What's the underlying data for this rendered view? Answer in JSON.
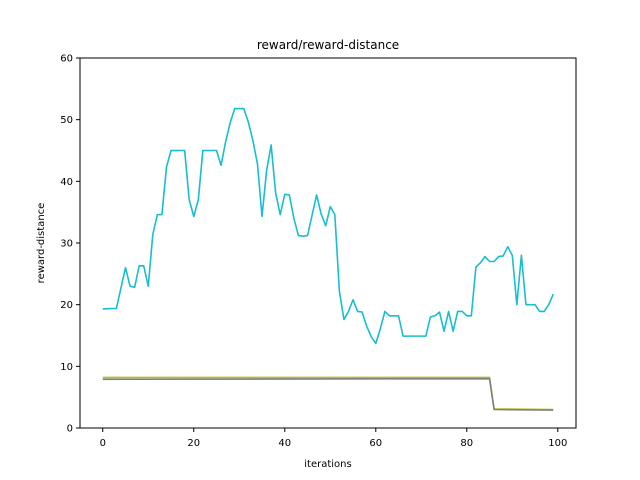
{
  "chart_data": {
    "type": "line",
    "title": "reward/reward-distance",
    "xlabel": "iterations",
    "ylabel": "reward-distance",
    "xlim": [
      -5,
      104
    ],
    "ylim": [
      0,
      60
    ],
    "xticks": [
      0,
      20,
      40,
      60,
      80,
      100
    ],
    "yticks": [
      0,
      10,
      20,
      30,
      40,
      50,
      60
    ],
    "grid": false,
    "series": [
      {
        "color": "#17becf",
        "x": [
          0,
          3,
          5,
          6,
          7,
          8,
          9,
          10,
          11,
          12,
          13,
          14,
          15,
          16,
          17,
          18,
          19,
          20,
          21,
          22,
          23,
          24,
          25,
          26,
          27,
          28,
          29,
          30,
          31,
          32,
          33,
          34,
          35,
          36,
          37,
          38,
          39,
          40,
          41,
          42,
          43,
          44,
          45,
          46,
          47,
          48,
          49,
          50,
          51,
          52,
          53,
          54,
          55,
          56,
          57,
          58,
          59,
          60,
          61,
          62,
          63,
          64,
          65,
          66,
          67,
          68,
          69,
          70,
          71,
          72,
          73,
          74,
          75,
          76,
          77,
          78,
          79,
          80,
          81,
          82,
          83,
          84,
          85,
          86,
          87,
          88,
          89,
          90,
          91,
          92,
          93,
          94,
          95,
          96,
          97,
          98,
          99
        ],
        "y": [
          19.3,
          19.4,
          26.0,
          23.0,
          22.8,
          26.3,
          26.3,
          23.0,
          31.4,
          34.6,
          34.6,
          42.3,
          45.0,
          45.0,
          45.0,
          45.0,
          37.0,
          34.3,
          37.0,
          45.0,
          45.0,
          45.0,
          45.0,
          42.6,
          46.4,
          49.5,
          51.8,
          51.8,
          51.8,
          49.6,
          46.6,
          42.8,
          34.3,
          41.7,
          45.9,
          38.1,
          34.6,
          37.9,
          37.8,
          34.0,
          31.2,
          31.1,
          31.2,
          34.5,
          37.8,
          34.7,
          32.8,
          35.9,
          34.6,
          22.2,
          17.6,
          18.9,
          20.8,
          18.9,
          18.8,
          16.5,
          14.8,
          13.7,
          16.1,
          18.9,
          18.2,
          18.2,
          18.2,
          14.9,
          14.9,
          14.9,
          14.9,
          14.9,
          14.9,
          18.0,
          18.2,
          18.8,
          15.7,
          18.9,
          15.7,
          18.9,
          18.9,
          18.2,
          18.2,
          26.1,
          26.8,
          27.8,
          27.0,
          27.0,
          27.8,
          27.9,
          29.4,
          28.0,
          20.0,
          28.0,
          20.0,
          20.0,
          20.0,
          18.9,
          18.9,
          20.0,
          21.7
        ]
      },
      {
        "color": "#bcbd22",
        "x": [
          0,
          85,
          86,
          99
        ],
        "y": [
          8.2,
          8.2,
          3.1,
          3.0
        ]
      },
      {
        "color": "#7f7f7f",
        "x": [
          0,
          85,
          86,
          99
        ],
        "y": [
          7.9,
          8.0,
          3.0,
          2.9
        ]
      }
    ]
  }
}
